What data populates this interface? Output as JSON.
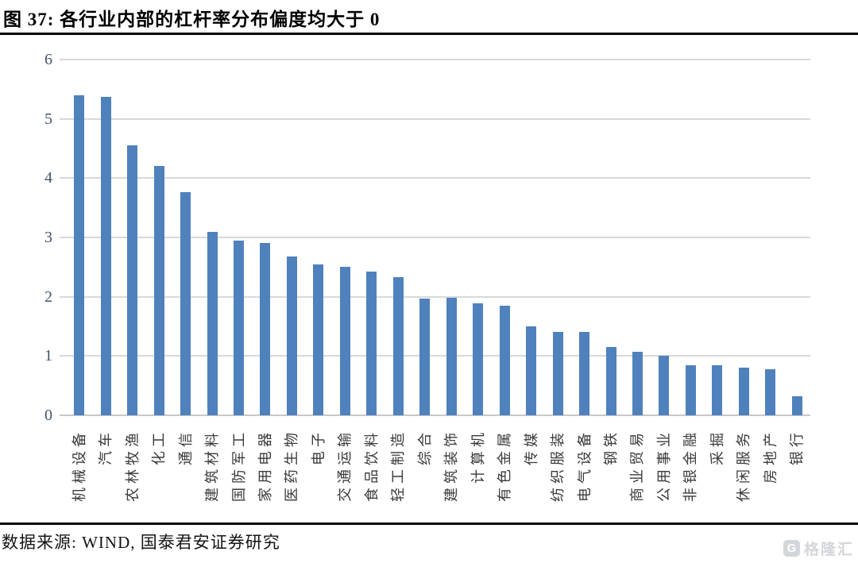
{
  "figure": {
    "title": "图 37: 各行业内部的杠杆率分布偏度均大于 0",
    "source": "数据来源: WIND, 国泰君安证券研究"
  },
  "watermark": {
    "icon_letter": "G",
    "text": "格隆汇"
  },
  "colors": {
    "bar": "#4f81bd",
    "gridline": "#d9d9d9",
    "axis_line": "#c9c9c9",
    "y_tick_label": "#44546a",
    "x_label": "#3a3a3a",
    "rule": "#000000",
    "watermark": "#d3d6da"
  },
  "chart_data": {
    "type": "bar",
    "title": "图 37: 各行业内部的杠杆率分布偏度均大于 0",
    "categories": [
      "机械设备",
      "汽车",
      "农林牧渔",
      "化工",
      "通信",
      "建筑材料",
      "国防军工",
      "家用电器",
      "医药生物",
      "电子",
      "交通运输",
      "食品饮料",
      "轻工制造",
      "综合",
      "建筑装饰",
      "计算机",
      "有色金属",
      "传媒",
      "纺织服装",
      "电气设备",
      "钢铁",
      "商业贸易",
      "公用事业",
      "非银金融",
      "采掘",
      "休闲服务",
      "房地产",
      "银行"
    ],
    "values": [
      5.4,
      5.37,
      4.55,
      4.2,
      3.77,
      3.09,
      2.94,
      2.91,
      2.68,
      2.54,
      2.5,
      2.42,
      2.33,
      1.97,
      1.98,
      1.89,
      1.85,
      1.5,
      1.41,
      1.41,
      1.15,
      1.07,
      1.0,
      0.84,
      0.84,
      0.81,
      0.78,
      0.32
    ],
    "xlabel": "",
    "ylabel": "",
    "ylim": [
      0,
      6
    ],
    "yticks": [
      0,
      1,
      2,
      3,
      4,
      5,
      6
    ],
    "grid": true,
    "legend": false
  }
}
